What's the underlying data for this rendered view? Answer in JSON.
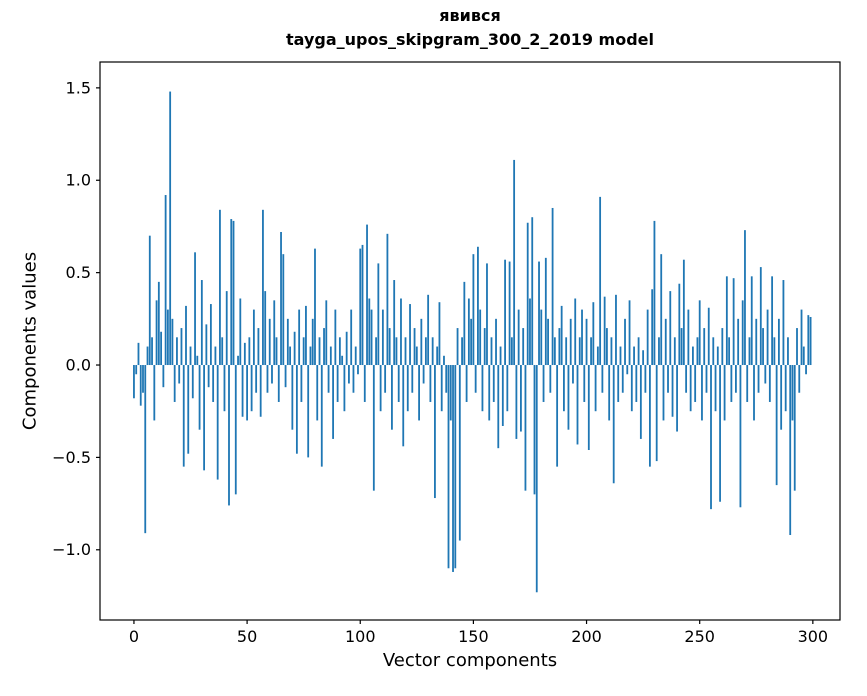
{
  "chart": {
    "title_line1": "явився",
    "title_line2": "tayga_upos_skipgram_300_2_2019 model",
    "xlabel": "Vector components",
    "ylabel": "Components values"
  },
  "chart_data": {
    "type": "bar",
    "title": "явився — tayga_upos_skipgram_300_2_2019 model",
    "xlabel": "Vector components",
    "ylabel": "Components values",
    "bar_color": "#1f77b4",
    "grid": false,
    "legend": null,
    "xlim": [
      -15,
      312
    ],
    "ylim": [
      -1.38,
      1.64
    ],
    "xticks": [
      0,
      50,
      100,
      150,
      200,
      250,
      300
    ],
    "yticks": [
      1.5,
      1.0,
      0.5,
      0.0,
      -0.5,
      -1.0
    ],
    "x_start": 0,
    "values": [
      -0.18,
      -0.05,
      0.12,
      -0.22,
      -0.15,
      -0.91,
      0.1,
      0.7,
      0.15,
      -0.3,
      0.35,
      0.45,
      0.18,
      -0.12,
      0.92,
      0.3,
      1.48,
      0.25,
      -0.2,
      0.15,
      -0.1,
      0.2,
      -0.55,
      0.32,
      -0.48,
      0.1,
      -0.18,
      0.61,
      0.05,
      -0.35,
      0.46,
      -0.57,
      0.22,
      -0.12,
      0.33,
      -0.2,
      0.1,
      -0.62,
      0.84,
      0.15,
      -0.25,
      0.4,
      -0.76,
      0.79,
      0.78,
      -0.7,
      0.05,
      0.36,
      -0.28,
      0.12,
      -0.3,
      0.15,
      -0.25,
      0.3,
      -0.15,
      0.2,
      -0.28,
      0.84,
      0.4,
      -0.15,
      0.25,
      -0.1,
      0.35,
      0.15,
      -0.2,
      0.72,
      0.6,
      -0.12,
      0.25,
      0.1,
      -0.35,
      0.18,
      -0.48,
      0.3,
      -0.2,
      0.15,
      0.32,
      -0.5,
      0.1,
      0.25,
      0.63,
      -0.3,
      0.15,
      -0.55,
      0.2,
      0.35,
      -0.15,
      0.1,
      -0.4,
      0.3,
      -0.2,
      0.15,
      0.05,
      -0.25,
      0.18,
      -0.1,
      0.3,
      -0.15,
      0.1,
      -0.05,
      0.63,
      0.65,
      -0.2,
      0.76,
      0.36,
      0.3,
      -0.68,
      0.15,
      0.55,
      -0.25,
      0.3,
      -0.15,
      0.71,
      0.2,
      -0.35,
      0.46,
      0.15,
      -0.2,
      0.36,
      -0.44,
      0.15,
      -0.25,
      0.33,
      -0.15,
      0.2,
      0.1,
      -0.3,
      0.25,
      -0.1,
      0.15,
      0.38,
      -0.2,
      0.15,
      -0.72,
      0.1,
      0.34,
      -0.25,
      0.05,
      -0.15,
      -1.1,
      -0.3,
      -1.12,
      -1.1,
      0.2,
      -0.95,
      0.15,
      0.45,
      -0.2,
      0.36,
      0.25,
      0.6,
      -0.15,
      0.64,
      0.3,
      -0.25,
      0.2,
      0.55,
      -0.3,
      0.15,
      -0.2,
      0.25,
      -0.45,
      0.1,
      -0.33,
      0.57,
      -0.25,
      0.56,
      0.15,
      1.11,
      -0.4,
      0.3,
      -0.36,
      0.2,
      -0.68,
      0.77,
      0.36,
      0.8,
      -0.7,
      -1.23,
      0.56,
      0.3,
      -0.2,
      0.58,
      0.25,
      -0.15,
      0.85,
      0.15,
      -0.55,
      0.2,
      0.32,
      -0.25,
      0.15,
      -0.35,
      0.25,
      -0.1,
      0.36,
      -0.43,
      0.15,
      0.3,
      -0.2,
      0.25,
      -0.46,
      0.15,
      0.34,
      -0.25,
      0.1,
      0.91,
      -0.15,
      0.37,
      0.2,
      -0.3,
      0.15,
      -0.64,
      0.38,
      -0.2,
      0.1,
      -0.15,
      0.25,
      -0.05,
      0.35,
      -0.25,
      0.1,
      -0.2,
      0.15,
      -0.4,
      0.08,
      -0.15,
      0.3,
      -0.55,
      0.41,
      0.78,
      -0.52,
      0.15,
      0.6,
      -0.3,
      0.25,
      -0.15,
      0.4,
      -0.28,
      0.15,
      -0.36,
      0.44,
      0.2,
      0.57,
      -0.15,
      0.3,
      -0.25,
      0.1,
      -0.2,
      0.15,
      0.35,
      -0.3,
      0.2,
      -0.15,
      0.31,
      -0.78,
      0.15,
      -0.25,
      0.1,
      -0.74,
      0.2,
      -0.3,
      0.48,
      0.15,
      -0.2,
      0.47,
      -0.15,
      0.25,
      -0.77,
      0.35,
      0.73,
      -0.2,
      0.15,
      0.48,
      -0.3,
      0.25,
      -0.15,
      0.53,
      0.2,
      -0.1,
      0.3,
      -0.2,
      0.48,
      0.15,
      -0.65,
      0.25,
      -0.35,
      0.46,
      -0.25,
      0.15,
      -0.92,
      -0.3,
      -0.68,
      0.2,
      -0.15,
      0.3,
      0.1,
      -0.05,
      0.27,
      0.26
    ]
  }
}
